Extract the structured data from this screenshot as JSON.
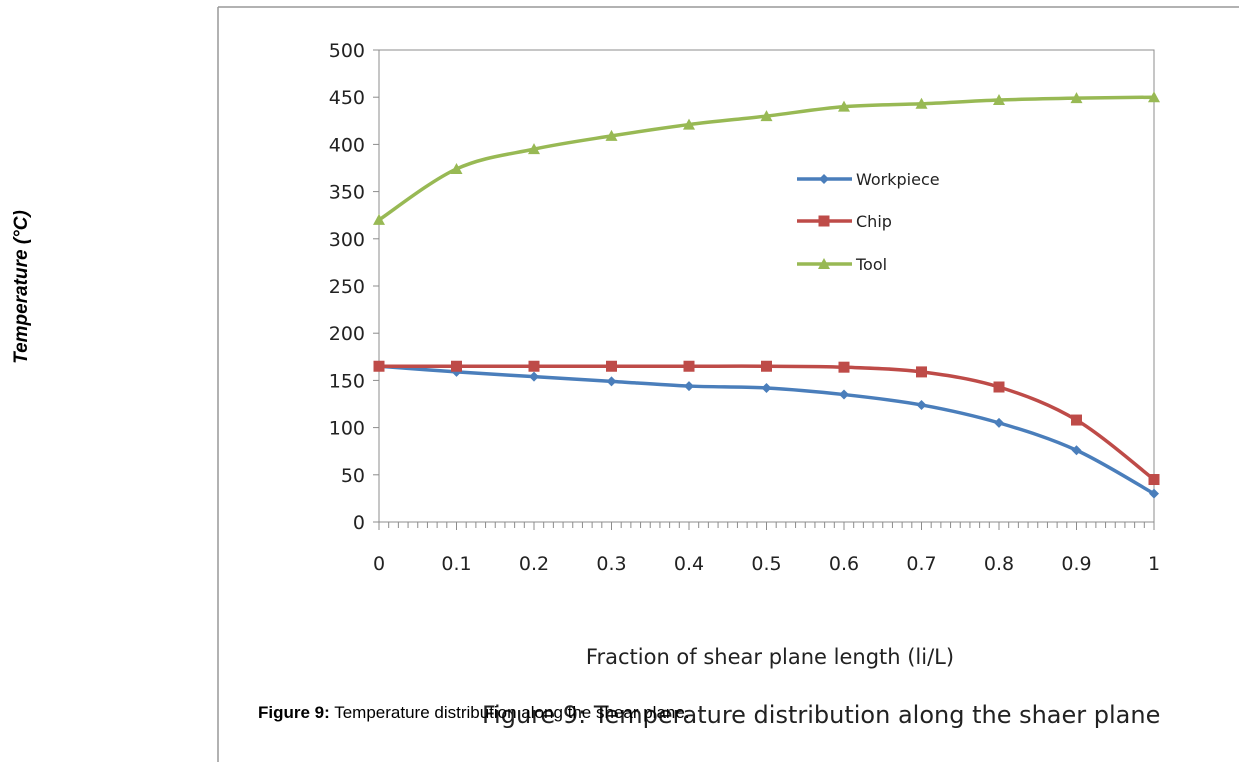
{
  "chart_data": {
    "type": "line",
    "xlabel": "Fraction of shear plane length (li/L)",
    "ylabel": "Temperature (°C)",
    "x": [
      0,
      0.1,
      0.2,
      0.3,
      0.4,
      0.5,
      0.6,
      0.7,
      0.8,
      0.9,
      1
    ],
    "x_tick_labels": [
      "0",
      "0.1",
      "0.2",
      "0.3",
      "0.4",
      "0.5",
      "0.6",
      "0.7",
      "0.8",
      "0.9",
      "1"
    ],
    "ylim": [
      0,
      500
    ],
    "y_ticks": [
      0,
      50,
      100,
      150,
      200,
      250,
      300,
      350,
      400,
      450,
      500
    ],
    "grid": false,
    "legend_position": "right-inside",
    "series": [
      {
        "name": "Workpiece",
        "color": "#4a7ebb",
        "marker": "diamond",
        "values": [
          165,
          159,
          154,
          149,
          144,
          142,
          135,
          124,
          105,
          76,
          30
        ]
      },
      {
        "name": "Chip",
        "color": "#be4b48",
        "marker": "square",
        "values": [
          165,
          165,
          165,
          165,
          165,
          165,
          164,
          159,
          143,
          108,
          45
        ]
      },
      {
        "name": "Tool",
        "color": "#98b954",
        "marker": "triangle",
        "values": [
          320,
          374,
          395,
          409,
          421,
          430,
          440,
          443,
          447,
          449,
          450
        ]
      }
    ]
  },
  "caption": {
    "underlay_text": "Figure 9: Temperature distribution along the shaer plane",
    "label": "Figure 9:",
    "overlay_text": " Temperature distribution along the shear plane."
  }
}
